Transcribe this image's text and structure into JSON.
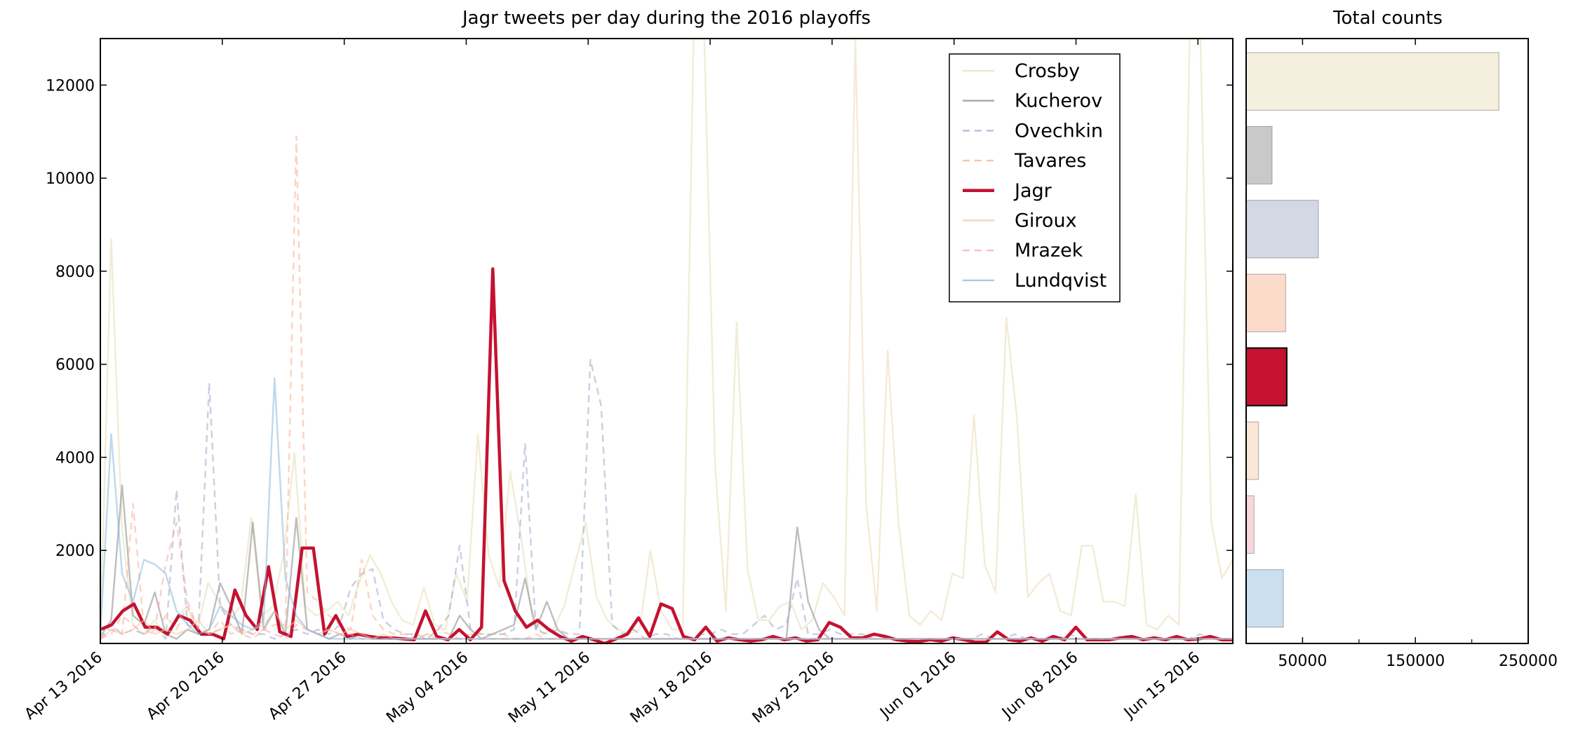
{
  "chart_data": [
    {
      "type": "line",
      "title": "Jagr tweets per day during the 2016 playoffs",
      "xlabel": "",
      "ylabel": "",
      "x_start": "2016-04-13",
      "x_end": "2016-06-17",
      "xlim": [
        "2016-04-13",
        "2016-06-17"
      ],
      "ylim": [
        0,
        13000
      ],
      "x_ticks": [
        "2016-04-13",
        "2016-04-20",
        "2016-04-27",
        "2016-05-04",
        "2016-05-11",
        "2016-05-18",
        "2016-05-25",
        "2016-06-01",
        "2016-06-08",
        "2016-06-15"
      ],
      "x_tick_labels": [
        "Apr 13 2016",
        "Apr 20 2016",
        "Apr 27 2016",
        "May 04 2016",
        "May 11 2016",
        "May 18 2016",
        "May 25 2016",
        "Jun 01 2016",
        "Jun 08 2016",
        "Jun 15 2016"
      ],
      "y_ticks": [
        2000,
        4000,
        6000,
        8000,
        10000,
        12000
      ],
      "y_tick_labels": [
        "2000",
        "4000",
        "6000",
        "8000",
        "10000",
        "12000"
      ],
      "grid": false,
      "legend_position": "top-right",
      "series": [
        {
          "name": "Crosby",
          "color": "#e8dcb5",
          "dash": "solid",
          "highlight": false,
          "values": [
            100,
            8700,
            2500,
            400,
            200,
            500,
            200,
            500,
            800,
            300,
            1300,
            900,
            500,
            800,
            2700,
            600,
            800,
            1900,
            4100,
            800,
            600,
            700,
            900,
            600,
            1300,
            1900,
            1500,
            900,
            500,
            400,
            1200,
            400,
            300,
            1500,
            900,
            4500,
            1900,
            1200,
            3700,
            2300,
            600,
            200,
            300,
            800,
            1700,
            2600,
            1000,
            500,
            300,
            200,
            300,
            2000,
            700,
            300,
            300,
            13000,
            13000,
            3800,
            700,
            6900,
            1600,
            500,
            500,
            800,
            900,
            300,
            500,
            1300,
            1000,
            600,
            13000,
            3000,
            700,
            6300,
            2600,
            600,
            400,
            700,
            500,
            1500,
            1400,
            4900,
            1700,
            1100,
            7000,
            4800,
            1000,
            1300,
            1500,
            700,
            600,
            2100,
            2100,
            900,
            900,
            800,
            3200,
            400,
            300,
            600,
            400,
            13000,
            13000,
            2600,
            1400,
            1800
          ]
        },
        {
          "name": "Kucherov",
          "color": "#888888",
          "dash": "solid",
          "highlight": false,
          "values": [
            150,
            500,
            3400,
            600,
            400,
            1100,
            200,
            100,
            300,
            200,
            300,
            1300,
            800,
            200,
            2600,
            300,
            700,
            200,
            2700,
            300,
            200,
            100,
            200,
            100,
            200,
            100,
            100,
            100,
            100,
            100,
            100,
            100,
            100,
            600,
            300,
            100,
            200,
            300,
            400,
            1400,
            300,
            900,
            300,
            100,
            100,
            100,
            100,
            100,
            100,
            100,
            100,
            100,
            100,
            100,
            100,
            100,
            100,
            100,
            100,
            100,
            100,
            100,
            100,
            100,
            2500,
            900,
            300,
            100,
            100,
            100,
            100,
            100,
            100,
            100,
            100,
            100,
            100,
            100,
            100,
            100,
            100,
            100,
            100,
            100,
            100,
            100,
            100,
            100,
            100,
            100,
            100,
            100,
            100,
            100,
            100,
            100,
            100,
            100,
            100,
            100,
            100,
            100,
            100,
            100,
            100
          ]
        },
        {
          "name": "Ovechkin",
          "color": "#9ea8c6",
          "dash": "dash",
          "highlight": false,
          "values": [
            100,
            400,
            200,
            300,
            200,
            400,
            100,
            3300,
            400,
            300,
            5600,
            800,
            400,
            300,
            200,
            200,
            100,
            200,
            300,
            200,
            300,
            200,
            400,
            1200,
            1500,
            1600,
            500,
            300,
            200,
            200,
            100,
            300,
            600,
            2100,
            300,
            200,
            200,
            200,
            300,
            4300,
            300,
            200,
            300,
            200,
            200,
            6100,
            5100,
            400,
            200,
            300,
            100,
            200,
            200,
            100,
            100,
            200,
            200,
            300,
            200,
            200,
            400,
            600,
            300,
            400,
            1400,
            200,
            200,
            300,
            200,
            200,
            200,
            100,
            100,
            100,
            100,
            100,
            100,
            100,
            100,
            100,
            100,
            200,
            100,
            100,
            200,
            100,
            100,
            100,
            100,
            200,
            100,
            100,
            100,
            100,
            100,
            100,
            100,
            100,
            100,
            100,
            100,
            200,
            100,
            100,
            100
          ]
        },
        {
          "name": "Tavares",
          "color": "#f8b08c",
          "dash": "dash",
          "highlight": false,
          "values": [
            100,
            300,
            200,
            3000,
            300,
            200,
            600,
            300,
            800,
            300,
            200,
            500,
            200,
            300,
            200,
            300,
            400,
            400,
            10900,
            1100,
            900,
            600,
            400,
            300,
            1800,
            600,
            300,
            200,
            200,
            100,
            200,
            300,
            200,
            100,
            200,
            200,
            200,
            200,
            100,
            100,
            200,
            100,
            100,
            100,
            100,
            100,
            100,
            100,
            100,
            100,
            100,
            100,
            100,
            100,
            100,
            100,
            100,
            100,
            100,
            100,
            100,
            100,
            100,
            100,
            100,
            100,
            100,
            100,
            100,
            100,
            100,
            100,
            100,
            100,
            100,
            100,
            100,
            100,
            100,
            100,
            100,
            100,
            100,
            100,
            100,
            100,
            100,
            100,
            100,
            100,
            100,
            100,
            100,
            100,
            100,
            100,
            100,
            100,
            100,
            100,
            100,
            100,
            100,
            100,
            100
          ]
        },
        {
          "name": "Jagr",
          "color": "#c41230",
          "dash": "solid",
          "highlight": true,
          "values": [
            300,
            400,
            700,
            850,
            350,
            350,
            200,
            600,
            500,
            200,
            200,
            100,
            1150,
            600,
            300,
            1650,
            250,
            150,
            2050,
            2050,
            200,
            600,
            150,
            200,
            150,
            120,
            120,
            100,
            80,
            700,
            150,
            80,
            300,
            80,
            350,
            8050,
            1350,
            700,
            350,
            500,
            300,
            150,
            50,
            150,
            80,
            0,
            100,
            200,
            550,
            150,
            850,
            750,
            150,
            80,
            350,
            50,
            120,
            80,
            50,
            80,
            150,
            80,
            120,
            50,
            80,
            450,
            350,
            120,
            120,
            200,
            150,
            80,
            50,
            40,
            80,
            50,
            120,
            80,
            30,
            30,
            250,
            80,
            50,
            120,
            50,
            150,
            80,
            350,
            80,
            80,
            80,
            120,
            150,
            80,
            120,
            80,
            150,
            80,
            100,
            150,
            80,
            80
          ]
        },
        {
          "name": "Giroux",
          "color": "#f4c7a4",
          "dash": "solid",
          "highlight": false,
          "values": [
            100,
            300,
            200,
            300,
            500,
            200,
            300,
            200,
            300,
            500,
            200,
            300,
            400,
            200,
            300,
            400,
            700,
            300,
            500,
            300,
            200,
            300,
            200,
            300,
            200,
            100,
            200,
            100,
            100,
            100,
            200,
            100,
            100,
            100,
            100,
            100,
            100,
            100,
            100,
            100,
            100,
            100,
            100,
            100,
            100,
            100,
            100,
            100,
            100,
            100,
            100,
            100,
            100,
            100,
            100,
            100,
            100,
            100,
            100,
            100,
            100,
            100,
            100,
            100,
            100,
            100,
            100,
            100,
            100,
            100,
            100,
            100,
            100,
            100,
            100,
            100,
            100,
            100,
            100,
            100,
            100,
            100,
            100,
            100,
            100,
            100,
            100,
            100,
            100,
            100,
            100,
            100,
            100,
            100,
            100,
            100,
            100,
            100,
            100,
            100,
            100,
            100,
            100,
            100,
            100
          ]
        },
        {
          "name": "Mrazek",
          "color": "#f2a7b4",
          "dash": "dash",
          "highlight": false,
          "values": [
            100,
            200,
            600,
            400,
            200,
            300,
            1700,
            2600,
            900,
            300,
            200,
            300,
            400,
            200,
            100,
            300,
            200,
            100,
            400,
            300,
            200,
            300,
            200,
            200,
            100,
            100,
            100,
            100,
            100,
            100,
            100,
            100,
            100,
            100,
            100,
            100,
            100,
            100,
            100,
            100,
            100,
            100,
            100,
            100,
            100,
            100,
            100,
            100,
            100,
            100,
            100,
            100,
            100,
            100,
            100,
            100,
            100,
            100,
            100,
            100,
            100,
            100,
            100,
            100,
            100,
            100,
            100,
            100,
            100,
            100,
            100,
            100,
            100,
            100,
            100,
            100,
            100,
            100,
            100,
            100,
            100,
            100,
            100,
            100,
            100,
            100,
            100,
            100,
            100,
            100,
            100,
            100,
            100,
            100,
            100,
            100,
            100,
            100,
            100,
            100,
            100,
            100,
            100,
            100,
            100
          ]
        },
        {
          "name": "Lundqvist",
          "color": "#8ab8dc",
          "dash": "solid",
          "highlight": false,
          "values": [
            200,
            4500,
            1500,
            900,
            1800,
            1700,
            1500,
            700,
            400,
            200,
            300,
            800,
            600,
            400,
            300,
            500,
            5700,
            1400,
            600,
            300,
            200,
            100,
            100,
            100,
            100,
            100,
            100,
            100,
            100,
            100,
            100,
            100,
            100,
            100,
            100,
            100,
            100,
            100,
            100,
            100,
            100,
            100,
            100,
            100,
            100,
            100,
            100,
            100,
            100,
            100,
            100,
            100,
            100,
            100,
            100,
            100,
            100,
            100,
            100,
            100,
            100,
            100,
            100,
            100,
            100,
            100,
            100,
            100,
            100,
            100,
            100,
            100,
            100,
            100,
            100,
            100,
            100,
            100,
            100,
            100,
            100,
            100,
            100,
            100,
            100,
            100,
            100,
            100,
            100,
            100,
            100,
            100,
            100,
            100,
            100,
            100,
            100,
            100,
            100,
            100,
            100,
            100,
            100,
            100,
            100
          ]
        }
      ]
    },
    {
      "type": "bar",
      "orientation": "horizontal",
      "title": "Total counts",
      "xlabel": "",
      "ylabel": "",
      "xlim": [
        0,
        250000
      ],
      "x_ticks": [
        50000,
        150000,
        250000
      ],
      "x_tick_labels": [
        "50000",
        "150000",
        "250000"
      ],
      "grid": false,
      "categories": [
        "Crosby",
        "Kucherov",
        "Ovechkin",
        "Tavares",
        "Jagr",
        "Giroux",
        "Mrazek",
        "Lundqvist"
      ],
      "values": [
        224000,
        23000,
        64000,
        35000,
        36000,
        11000,
        7000,
        33000
      ],
      "colors": [
        "#e8dcb5",
        "#888888",
        "#9ea8c6",
        "#f8b08c",
        "#c41230",
        "#f4c7a4",
        "#f2a7b4",
        "#8ab8dc"
      ],
      "highlight": "Jagr"
    }
  ]
}
